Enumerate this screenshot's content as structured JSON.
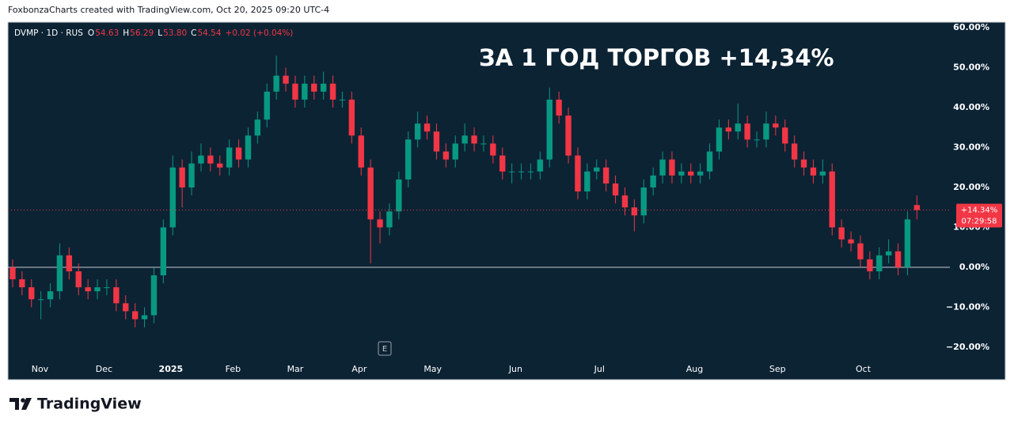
{
  "header": {
    "credit": "FoxbonzaCharts created with TradingView.com, Oct 20, 2025 09:20 UTC-4"
  },
  "footer": {
    "brand": "TradingView"
  },
  "chart_data": {
    "type": "candlestick",
    "symbol": "DVMP · 1D · RUS",
    "ohlc_legend": [
      {
        "key": "O",
        "value": "54.63"
      },
      {
        "key": "H",
        "value": "56.29"
      },
      {
        "key": "L",
        "value": "53.80"
      },
      {
        "key": "C",
        "value": "54.54"
      }
    ],
    "change": "+0.02 (+0.04%)",
    "annotation": "ЗА 1 ГОД ТОРГОВ +14,34%",
    "event_marker": "E",
    "last_price_label": "+14.34%",
    "countdown": "07:29:58",
    "up_color": "#089981",
    "down_color": "#f23645",
    "zero_line": true,
    "grid": false,
    "ylim": [
      -23.2,
      61.4
    ],
    "yticks": [
      {
        "value": 60,
        "label": "60.00%"
      },
      {
        "value": 50,
        "label": "50.00%"
      },
      {
        "value": 40,
        "label": "40.00%"
      },
      {
        "value": 30,
        "label": "30.00%"
      },
      {
        "value": 20,
        "label": "20.00%"
      },
      {
        "value": 10,
        "label": "10.00%"
      },
      {
        "value": 0,
        "label": "0.00%"
      },
      {
        "value": -10,
        "label": "−10.00%"
      },
      {
        "value": -20,
        "label": "−20.00%"
      }
    ],
    "xlim": [
      -0.5,
      99.5
    ],
    "xticks": [
      {
        "value": 2.9,
        "label": "Nov"
      },
      {
        "value": 9.7,
        "label": "Dec"
      },
      {
        "value": 16.8,
        "label": "2025"
      },
      {
        "value": 23.4,
        "label": "Feb"
      },
      {
        "value": 30.0,
        "label": "Mar"
      },
      {
        "value": 36.8,
        "label": "Apr"
      },
      {
        "value": 44.6,
        "label": "May"
      },
      {
        "value": 53.4,
        "label": "Jun"
      },
      {
        "value": 62.3,
        "label": "Jul"
      },
      {
        "value": 72.4,
        "label": "Aug"
      },
      {
        "value": 81.2,
        "label": "Sep"
      },
      {
        "value": 90.3,
        "label": "Oct"
      }
    ],
    "series": {
      "open": [
        0,
        -3,
        -5,
        -8,
        -8,
        -6,
        3,
        -1,
        -5,
        -6,
        -5,
        -5,
        -9,
        -11,
        -13,
        -12,
        -2,
        10,
        25,
        20,
        26,
        28,
        26,
        25,
        30,
        27,
        33,
        37,
        44,
        48,
        46,
        42,
        46,
        44,
        46,
        42,
        42,
        33,
        25,
        12,
        10,
        14,
        22,
        32,
        36,
        34,
        29,
        27,
        31,
        33,
        31,
        31,
        28,
        24,
        24,
        24,
        24,
        27,
        42,
        38,
        28,
        19,
        24,
        25,
        21,
        18,
        15,
        13,
        20,
        23,
        27,
        23,
        24,
        23,
        24,
        29,
        35,
        34,
        36,
        32,
        32,
        36,
        35,
        31,
        27,
        25,
        23,
        24,
        10,
        7,
        6,
        2,
        -1,
        3,
        4,
        0,
        15.6
      ],
      "high": [
        2,
        -1,
        -3,
        -6,
        -4,
        6,
        5,
        1,
        -3,
        -3,
        -3,
        -3,
        -7,
        -9,
        -10,
        0,
        12,
        28,
        27,
        29,
        31,
        30,
        28,
        32,
        32,
        35,
        39,
        46,
        53,
        50,
        48,
        48,
        48,
        49,
        48,
        44,
        44,
        35,
        27,
        14,
        16,
        24,
        34,
        39,
        38,
        36,
        31,
        33,
        36,
        35,
        33,
        33,
        30,
        26,
        26,
        26,
        29,
        45,
        44,
        40,
        30,
        26,
        27,
        27,
        23,
        20,
        17,
        22,
        25,
        29,
        29,
        26,
        26,
        26,
        31,
        37,
        37,
        41,
        38,
        34,
        39,
        38,
        37,
        33,
        29,
        27,
        27,
        26,
        12,
        9,
        8,
        4,
        5,
        7,
        6,
        14,
        18
      ],
      "low": [
        -5,
        -7,
        -10,
        -13,
        -10,
        -8,
        -3,
        -7,
        -8,
        -8,
        -7,
        -11,
        -13,
        -15,
        -15,
        -14,
        -4,
        8,
        15,
        18,
        24,
        24,
        23,
        23,
        25,
        25,
        31,
        35,
        42,
        44,
        40,
        40,
        42,
        42,
        40,
        40,
        31,
        23,
        1,
        6,
        8,
        12,
        20,
        30,
        32,
        27,
        25,
        25,
        29,
        29,
        29,
        26,
        22,
        21,
        22,
        22,
        22,
        25,
        36,
        26,
        17,
        17,
        22,
        19,
        16,
        13,
        9,
        11,
        18,
        21,
        21,
        21,
        21,
        21,
        22,
        27,
        32,
        32,
        30,
        30,
        30,
        33,
        29,
        25,
        23,
        21,
        21,
        8,
        5,
        4,
        0,
        -3,
        -3,
        1,
        -2,
        -2,
        12
      ],
      "close": [
        -3,
        -5,
        -8,
        -8,
        -6,
        3,
        -1,
        -5,
        -6,
        -5,
        -5,
        -9,
        -11,
        -13,
        -12,
        -2,
        10,
        25,
        20,
        26,
        28,
        26,
        25,
        30,
        27,
        33,
        37,
        44,
        48,
        46,
        42,
        46,
        44,
        46,
        42,
        42,
        33,
        25,
        12,
        10,
        14,
        22,
        32,
        36,
        34,
        29,
        27,
        31,
        33,
        31,
        31,
        28,
        24,
        24,
        24,
        24,
        27,
        42,
        38,
        28,
        19,
        24,
        25,
        21,
        18,
        15,
        13,
        20,
        23,
        27,
        23,
        24,
        23,
        24,
        29,
        35,
        34,
        36,
        32,
        32,
        36,
        35,
        31,
        27,
        25,
        23,
        24,
        10,
        7,
        6,
        2,
        -1,
        3,
        4,
        0,
        12,
        14.34
      ]
    }
  }
}
